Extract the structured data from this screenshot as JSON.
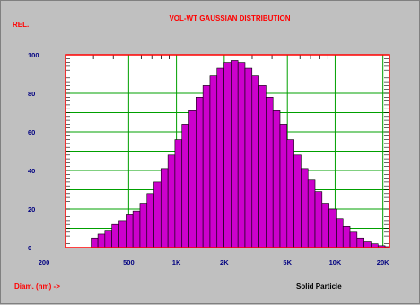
{
  "colors": {
    "background": "#c0c0c0",
    "plot_background": "#ffffff",
    "frame_red": "#ff0000",
    "grid_green": "#00a000",
    "bar_fill": "#cc00cc",
    "bar_stroke": "#000000",
    "label_red": "#ff0000",
    "tick_label_blue": "#000080",
    "footer_text": "#000000"
  },
  "header": {
    "rel_label": "REL.",
    "title": "VOL-WT GAUSSIAN DISTRIBUTION"
  },
  "footer": {
    "x_axis_label": "Diam. (nm) ->",
    "particle_mode": "Solid Particle"
  },
  "chart_data": {
    "type": "bar",
    "title": "VOL-WT GAUSSIAN DISTRIBUTION",
    "ylabel": "REL.",
    "xlabel": "Diam. (nm) ->",
    "x_scale": "log",
    "xlim": [
      200,
      22000
    ],
    "ylim": [
      0,
      100
    ],
    "grid": true,
    "x_ticks": [
      {
        "value": 200,
        "label": "200"
      },
      {
        "value": 500,
        "label": "500"
      },
      {
        "value": 1000,
        "label": "1K"
      },
      {
        "value": 2000,
        "label": "2K"
      },
      {
        "value": 5000,
        "label": "5K"
      },
      {
        "value": 10000,
        "label": "10K"
      },
      {
        "value": 20000,
        "label": "20K"
      }
    ],
    "y_ticks": [
      {
        "value": 0,
        "label": "0"
      },
      {
        "value": 20,
        "label": "20"
      },
      {
        "value": 40,
        "label": "40"
      },
      {
        "value": 60,
        "label": "60"
      },
      {
        "value": 80,
        "label": "80"
      },
      {
        "value": 100,
        "label": "100"
      }
    ],
    "bin_edges": [
      290,
      320,
      354,
      392,
      434,
      481,
      532,
      589,
      652,
      721,
      798,
      884,
      978,
      1083,
      1199,
      1327,
      1469,
      1626,
      1800,
      1993,
      2206,
      2442,
      2703,
      2992,
      3312,
      3666,
      4059,
      4493,
      4973,
      5505,
      6094,
      6746,
      7467,
      8266,
      9150,
      10129,
      11212,
      12411,
      13739,
      15208,
      16835,
      18636,
      20629,
      22000
    ],
    "values": [
      5,
      7,
      9,
      12,
      14,
      17,
      19,
      23,
      28,
      34,
      41,
      48,
      56,
      64,
      71,
      78,
      84,
      89,
      93,
      96,
      97,
      96,
      93,
      89,
      84,
      78,
      71,
      64,
      56,
      48,
      41,
      35,
      29,
      23,
      20,
      15,
      11,
      8,
      5,
      3,
      2,
      1,
      0.5
    ]
  }
}
